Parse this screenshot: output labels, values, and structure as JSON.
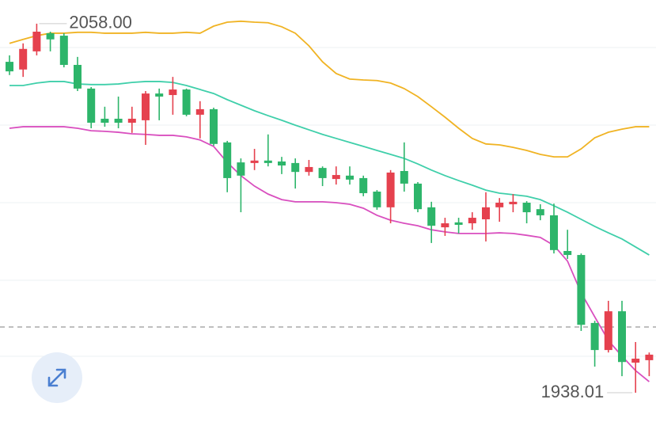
{
  "chart_data": {
    "type": "candlestick",
    "grid": true,
    "ylim": [
      1928.5,
      2065.7
    ],
    "up_color": "#e5414e",
    "down_color": "#2db56a",
    "max_label": "2058.00",
    "min_label": "1938.01",
    "open": [
      2045.6,
      2043.1,
      2049.0,
      2054.9,
      2054.1,
      2044.6,
      2036.9,
      2027.1,
      2027.1,
      2025.8,
      2026.6,
      2035.3,
      2034.8,
      2036.6,
      2028.4,
      2030.2,
      2019.4,
      2012.9,
      2012.7,
      2013.5,
      2013.2,
      2012.7,
      2009.8,
      2011.1,
      2007.5,
      2008.6,
      2007.8,
      2003.4,
      1998.3,
      2010.1,
      2006.0,
      1998.3,
      1991.8,
      1993.4,
      1993.1,
      1994.4,
      1998.3,
      1999.3,
      1999.8,
      1997.7,
      1995.7,
      1984.1,
      1982.8,
      1960.7,
      1951.9,
      1964.5,
      1947.8,
      1948.6
    ],
    "high": [
      2047.7,
      2051.6,
      2058.0,
      2055.4,
      2054.9,
      2047.2,
      2037.4,
      2031.0,
      2034.3,
      2031.0,
      2036.1,
      2036.9,
      2040.7,
      2036.9,
      2032.8,
      2030.7,
      2019.9,
      2014.2,
      2017.3,
      2022.0,
      2014.7,
      2014.2,
      2013.7,
      2011.6,
      2011.6,
      2011.6,
      2008.6,
      2003.9,
      2010.4,
      2019.4,
      2006.5,
      2000.1,
      1994.9,
      1994.9,
      1996.7,
      2003.2,
      2001.3,
      2002.6,
      2000.3,
      1999.3,
      1999.5,
      1991.0,
      1983.3,
      1961.4,
      1967.9,
      1967.9,
      1954.5,
      1951.1
    ],
    "low": [
      2041.3,
      2040.7,
      2047.7,
      2049.0,
      2043.8,
      2036.1,
      2024.0,
      2024.5,
      2024.0,
      2022.5,
      2018.6,
      2026.6,
      2028.4,
      2027.9,
      2020.7,
      2018.3,
      2003.2,
      1996.7,
      2010.4,
      2011.6,
      2009.1,
      2004.4,
      2008.6,
      2005.2,
      2005.7,
      2005.7,
      2001.9,
      1997.5,
      1993.1,
      2003.4,
      1996.7,
      1986.7,
      1989.0,
      1989.8,
      1991.0,
      1987.2,
      1993.6,
      1996.7,
      1993.1,
      1994.1,
      1983.3,
      1981.5,
      1958.1,
      1946.5,
      1951.1,
      1943.4,
      1938.01,
      1943.4
    ],
    "close": [
      2042.5,
      2049.8,
      2055.4,
      2052.9,
      2044.6,
      2036.9,
      2025.8,
      2025.8,
      2025.8,
      2027.1,
      2035.3,
      2034.3,
      2036.6,
      2028.4,
      2030.2,
      2018.9,
      2007.8,
      2008.6,
      2013.5,
      2012.7,
      2011.9,
      2009.8,
      2011.4,
      2007.8,
      2008.8,
      2007.3,
      2002.9,
      1998.3,
      2009.6,
      2006.0,
      1997.7,
      1992.3,
      1993.1,
      1992.6,
      1994.9,
      1998.3,
      1999.8,
      2000.1,
      1996.7,
      1995.7,
      1984.4,
      1982.8,
      1960.1,
      1951.9,
      1964.5,
      1948.0,
      1949.1,
      1950.4
    ],
    "bands": [
      {
        "color": "#f0b323",
        "values": [
          2051.6,
          2052.9,
          2054.1,
          2054.9,
          2054.9,
          2055.2,
          2055.2,
          2054.9,
          2054.9,
          2054.9,
          2055.2,
          2054.9,
          2054.9,
          2055.2,
          2054.9,
          2057.2,
          2058.5,
          2058.8,
          2058.5,
          2058.3,
          2057.0,
          2054.9,
          2050.8,
          2045.6,
          2041.8,
          2040.0,
          2039.7,
          2039.5,
          2038.7,
          2036.9,
          2034.3,
          2031.0,
          2027.6,
          2024.0,
          2020.7,
          2018.9,
          2018.6,
          2017.8,
          2016.8,
          2015.5,
          2014.7,
          2014.7,
          2017.3,
          2020.9,
          2022.7,
          2023.7,
          2024.5,
          2024.5
        ]
      },
      {
        "color": "#3fcfaa",
        "values": [
          2037.9,
          2037.9,
          2038.7,
          2039.2,
          2039.2,
          2038.4,
          2038.2,
          2038.2,
          2038.4,
          2038.9,
          2039.2,
          2039.2,
          2038.9,
          2037.9,
          2036.6,
          2035.3,
          2033.3,
          2031.5,
          2029.7,
          2028.1,
          2026.6,
          2025.0,
          2023.5,
          2022.0,
          2020.7,
          2019.4,
          2018.1,
          2016.8,
          2015.5,
          2014.2,
          2012.4,
          2010.4,
          2008.6,
          2007.0,
          2005.5,
          2003.9,
          2002.9,
          2002.4,
          2001.9,
          2000.8,
          1998.8,
          1996.7,
          1994.4,
          1992.1,
          1990.0,
          1988.0,
          1985.4,
          1982.8
        ]
      },
      {
        "color": "#d94fbf",
        "values": [
          2024.0,
          2024.5,
          2024.5,
          2024.5,
          2024.5,
          2024.0,
          2023.2,
          2023.0,
          2022.7,
          2022.2,
          2022.0,
          2021.7,
          2021.7,
          2021.2,
          2020.2,
          2018.1,
          2012.9,
          2008.6,
          2005.2,
          2002.6,
          2000.8,
          2000.1,
          2000.1,
          2000.1,
          1999.8,
          1999.3,
          1998.0,
          1995.7,
          1994.1,
          1993.1,
          1992.3,
          1991.0,
          1990.3,
          1989.8,
          1989.8,
          1989.8,
          1990.0,
          1989.8,
          1989.2,
          1988.5,
          1985.9,
          1980.8,
          1970.5,
          1962.7,
          1955.0,
          1949.9,
          1945.2,
          1941.6
        ]
      }
    ]
  }
}
